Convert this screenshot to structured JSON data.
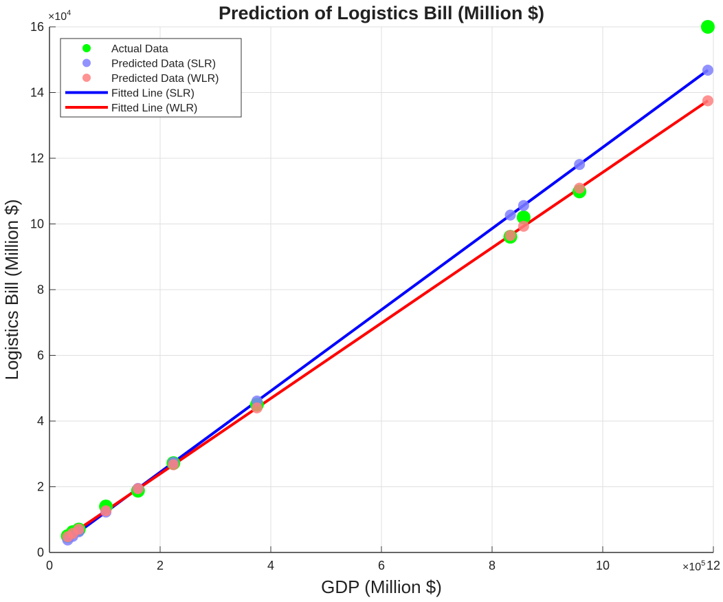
{
  "chart_data": {
    "type": "scatter",
    "title": "Prediction of Logistics Bill (Million $)",
    "xlabel": "GDP (Million $)",
    "ylabel": "Logistics Bill (Million $)",
    "x_multiplier": "×10",
    "x_multiplier_exp": "5",
    "y_multiplier": "×10",
    "y_multiplier_exp": "4",
    "xlim": [
      0,
      12
    ],
    "ylim": [
      0,
      16
    ],
    "xticks": [
      "0",
      "2",
      "4",
      "6",
      "8",
      "10",
      "12"
    ],
    "yticks": [
      "0",
      "2",
      "4",
      "6",
      "8",
      "10",
      "12",
      "14",
      "16"
    ],
    "grid": true,
    "legend_position": "top-left",
    "x": [
      0.33,
      0.42,
      0.53,
      1.02,
      1.6,
      2.24,
      3.75,
      8.33,
      8.57,
      9.58,
      11.9
    ],
    "series": [
      {
        "name": "Actual Data",
        "kind": "scatter",
        "color": "#00ff00",
        "values": [
          0.5,
          0.62,
          0.7,
          1.4,
          1.88,
          2.72,
          4.5,
          9.61,
          10.2,
          10.99,
          16.0
        ]
      },
      {
        "name": "Predicted Data (SLR)",
        "kind": "scatter",
        "color": "#7f7fff",
        "values": [
          0.38,
          0.49,
          0.63,
          1.23,
          1.95,
          2.74,
          4.61,
          10.27,
          10.56,
          11.81,
          14.68
        ]
      },
      {
        "name": "Predicted Data (WLR)",
        "kind": "scatter",
        "color": "#ff7f7f",
        "values": [
          0.48,
          0.58,
          0.71,
          1.27,
          1.94,
          2.67,
          4.4,
          9.65,
          9.93,
          11.09,
          13.75
        ]
      },
      {
        "name": "Fitted Line (SLR)",
        "kind": "line",
        "color": "#0000ff",
        "values": [
          0.38,
          0.49,
          0.63,
          1.23,
          1.95,
          2.74,
          4.61,
          10.27,
          10.56,
          11.81,
          14.68
        ]
      },
      {
        "name": "Fitted Line (WLR)",
        "kind": "line",
        "color": "#ff0000",
        "values": [
          0.48,
          0.58,
          0.71,
          1.27,
          1.94,
          2.67,
          4.4,
          9.65,
          9.93,
          11.09,
          13.75
        ]
      }
    ]
  }
}
